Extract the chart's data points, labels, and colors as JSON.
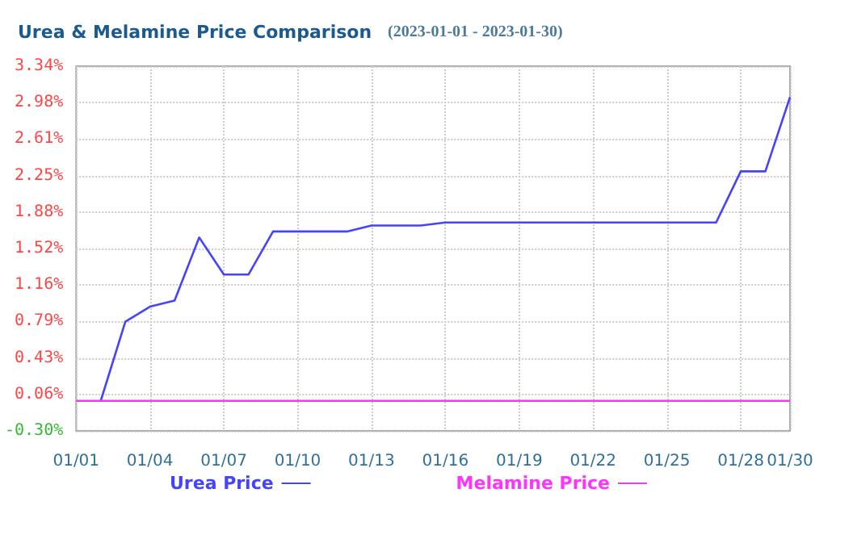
{
  "chart_data": {
    "type": "line",
    "title": "Urea & Melamine Price Comparison",
    "subtitle": "(2023-01-01 - 2023-01-30)",
    "categories": [
      "01/01",
      null,
      null,
      "01/04",
      null,
      null,
      "01/07",
      null,
      null,
      "01/10",
      null,
      null,
      "01/13",
      null,
      null,
      "01/16",
      null,
      null,
      "01/19",
      null,
      null,
      "01/22",
      null,
      null,
      "01/25",
      null,
      null,
      "01/28",
      null,
      "01/30"
    ],
    "series": [
      {
        "name": "Urea Price",
        "color": "#4444ff",
        "values": [
          null,
          0,
          0.79,
          0.94,
          1.0,
          1.63,
          1.26,
          1.26,
          1.69,
          1.69,
          1.69,
          1.69,
          1.75,
          1.75,
          1.75,
          1.78,
          1.78,
          1.78,
          1.78,
          1.78,
          1.78,
          1.78,
          1.78,
          1.78,
          1.78,
          1.78,
          1.78,
          2.29,
          2.29,
          3.03
        ]
      },
      {
        "name": "Melamine Price",
        "color": "#ff33ff",
        "values": [
          0,
          0,
          0,
          0,
          0,
          0,
          0,
          0,
          0,
          0,
          0,
          0,
          0,
          0,
          0,
          0,
          0,
          0,
          0,
          0,
          0,
          0,
          0,
          0,
          0,
          0,
          0,
          0,
          0,
          0
        ]
      }
    ],
    "ylim": [
      -0.3,
      3.34
    ],
    "yticks": [
      {
        "value": -0.3,
        "label": "-0.30%"
      },
      {
        "value": 0.064,
        "label": "0.06%"
      },
      {
        "value": 0.428,
        "label": "0.43%"
      },
      {
        "value": 0.792,
        "label": "0.79%"
      },
      {
        "value": 1.156,
        "label": "1.16%"
      },
      {
        "value": 1.52,
        "label": "1.52%"
      },
      {
        "value": 1.884,
        "label": "1.88%"
      },
      {
        "value": 2.248,
        "label": "2.25%"
      },
      {
        "value": 2.612,
        "label": "2.61%"
      },
      {
        "value": 2.976,
        "label": "2.98%"
      },
      {
        "value": 3.34,
        "label": "3.34%"
      }
    ],
    "grid": true,
    "legend": "bottom",
    "marker": "none",
    "line_style": "solid"
  }
}
